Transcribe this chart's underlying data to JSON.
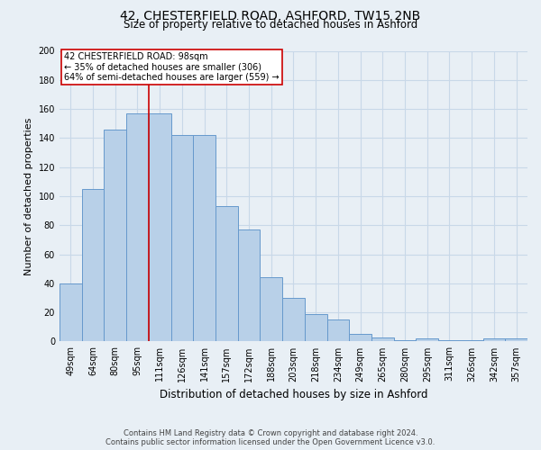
{
  "title": "42, CHESTERFIELD ROAD, ASHFORD, TW15 2NB",
  "subtitle": "Size of property relative to detached houses in Ashford",
  "xlabel": "Distribution of detached houses by size in Ashford",
  "ylabel": "Number of detached properties",
  "categories": [
    "49sqm",
    "64sqm",
    "80sqm",
    "95sqm",
    "111sqm",
    "126sqm",
    "141sqm",
    "157sqm",
    "172sqm",
    "188sqm",
    "203sqm",
    "218sqm",
    "234sqm",
    "249sqm",
    "265sqm",
    "280sqm",
    "295sqm",
    "311sqm",
    "326sqm",
    "342sqm",
    "357sqm"
  ],
  "values": [
    40,
    105,
    146,
    157,
    157,
    142,
    142,
    93,
    77,
    44,
    30,
    19,
    15,
    5,
    3,
    1,
    2,
    1,
    1,
    2,
    2
  ],
  "bar_color": "#b8d0e8",
  "bar_edge_color": "#6699cc",
  "reference_line_label": "42 CHESTERFIELD ROAD: 98sqm",
  "annotation_line1": "← 35% of detached houses are smaller (306)",
  "annotation_line2": "64% of semi-detached houses are larger (559) →",
  "annotation_box_color": "#ffffff",
  "annotation_box_edge": "#cc0000",
  "ylim": [
    0,
    200
  ],
  "yticks": [
    0,
    20,
    40,
    60,
    80,
    100,
    120,
    140,
    160,
    180,
    200
  ],
  "vline_color": "#cc0000",
  "grid_color": "#c8d8e8",
  "footer_line1": "Contains HM Land Registry data © Crown copyright and database right 2024.",
  "footer_line2": "Contains public sector information licensed under the Open Government Licence v3.0.",
  "bg_color": "#e8eff5",
  "plot_bg_color": "#e8eff5",
  "title_fontsize": 10,
  "subtitle_fontsize": 8.5,
  "ylabel_fontsize": 8,
  "xlabel_fontsize": 8.5,
  "tick_fontsize": 7,
  "footer_fontsize": 6,
  "annot_fontsize": 7
}
